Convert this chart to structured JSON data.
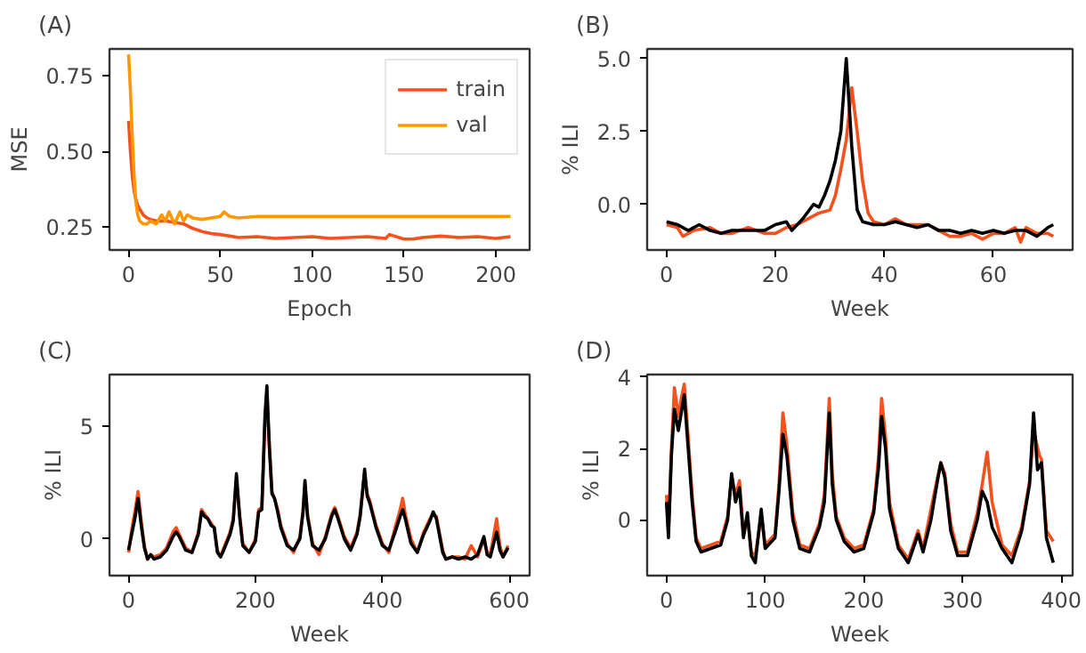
{
  "chart_data": [
    {
      "type": "line",
      "title": "(A)",
      "xlabel": "Epoch",
      "ylabel": "MSE",
      "xlim": [
        -10.4,
        218.4
      ],
      "ylim": [
        0.174,
        0.838
      ],
      "xticks": [
        0,
        50,
        100,
        150,
        200
      ],
      "yticks": [
        {
          "value": 0.25,
          "label": "0.25"
        },
        {
          "value": 0.5,
          "label": "0.50"
        },
        {
          "value": 0.75,
          "label": "0.75"
        }
      ],
      "legend": "top right",
      "series": [
        {
          "name": "train",
          "color": "#f4511e",
          "x": [
            0,
            1,
            2,
            3,
            4,
            5,
            6,
            8,
            10,
            12,
            15,
            20,
            25,
            30,
            35,
            40,
            45,
            50,
            55,
            60,
            70,
            80,
            90,
            100,
            110,
            120,
            130,
            140,
            142,
            150,
            155,
            160,
            170,
            180,
            190,
            200,
            208
          ],
          "values": [
            0.6,
            0.5,
            0.42,
            0.37,
            0.34,
            0.32,
            0.31,
            0.29,
            0.28,
            0.275,
            0.27,
            0.27,
            0.265,
            0.26,
            0.245,
            0.235,
            0.228,
            0.225,
            0.22,
            0.215,
            0.218,
            0.212,
            0.215,
            0.218,
            0.212,
            0.215,
            0.218,
            0.212,
            0.225,
            0.21,
            0.21,
            0.215,
            0.22,
            0.215,
            0.218,
            0.212,
            0.218
          ]
        },
        {
          "name": "val",
          "color": "#ff9800",
          "x": [
            0,
            1,
            2,
            3,
            4,
            5,
            6,
            8,
            10,
            12,
            15,
            18,
            20,
            22,
            25,
            28,
            30,
            32,
            35,
            40,
            45,
            50,
            52,
            55,
            60,
            70,
            80,
            100,
            150,
            208
          ],
          "values": [
            0.82,
            0.7,
            0.55,
            0.42,
            0.33,
            0.29,
            0.27,
            0.26,
            0.26,
            0.27,
            0.26,
            0.29,
            0.27,
            0.3,
            0.26,
            0.3,
            0.27,
            0.29,
            0.28,
            0.275,
            0.28,
            0.285,
            0.3,
            0.285,
            0.28,
            0.285,
            0.285,
            0.285,
            0.285,
            0.285
          ]
        }
      ]
    },
    {
      "type": "line",
      "title": "(B)",
      "xlabel": "Week",
      "ylabel": "% ILI",
      "xlim": [
        -3.55,
        74.55
      ],
      "ylim": [
        -1.57,
        5.33
      ],
      "xticks": [
        0,
        20,
        40,
        60
      ],
      "yticks": [
        {
          "value": 0,
          "label": "0.0"
        },
        {
          "value": 2.5,
          "label": "2.5"
        },
        {
          "value": 5,
          "label": "5.0"
        }
      ],
      "series": [
        {
          "color": "#f4511e",
          "x": [
            0,
            2,
            3,
            5,
            8,
            10,
            12,
            15,
            18,
            20,
            22,
            24,
            26,
            28,
            30,
            31,
            32,
            33,
            34,
            35,
            36,
            37,
            38,
            40,
            42,
            44,
            46,
            48,
            50,
            52,
            54,
            56,
            58,
            60,
            62,
            64,
            65,
            66,
            68,
            70,
            71
          ],
          "values": [
            -0.7,
            -0.8,
            -1.1,
            -0.9,
            -0.8,
            -1.0,
            -1.0,
            -0.8,
            -1.0,
            -1.0,
            -0.8,
            -0.7,
            -0.5,
            -0.3,
            -0.2,
            0.3,
            1.2,
            2.2,
            4.0,
            2.5,
            0.8,
            -0.3,
            -0.6,
            -0.7,
            -0.5,
            -0.7,
            -0.7,
            -0.7,
            -0.9,
            -1.1,
            -1.1,
            -1.0,
            -1.2,
            -1.0,
            -1.0,
            -0.8,
            -1.3,
            -0.8,
            -1.0,
            -1.0,
            -1.1
          ]
        },
        {
          "color": "#000000",
          "x": [
            0,
            2,
            4,
            6,
            8,
            10,
            12,
            14,
            16,
            18,
            20,
            22,
            23,
            25,
            27,
            28,
            29,
            30,
            31,
            32,
            33,
            34,
            35,
            36,
            38,
            40,
            42,
            44,
            46,
            48,
            50,
            52,
            54,
            56,
            58,
            60,
            62,
            64,
            66,
            68,
            70,
            71
          ],
          "values": [
            -0.6,
            -0.7,
            -0.9,
            -0.7,
            -0.9,
            -1.0,
            -0.9,
            -0.9,
            -0.9,
            -0.9,
            -0.7,
            -0.6,
            -0.9,
            -0.5,
            0.0,
            -0.1,
            0.3,
            0.8,
            1.5,
            2.5,
            5.0,
            2.0,
            -0.2,
            -0.6,
            -0.7,
            -0.7,
            -0.6,
            -0.7,
            -0.8,
            -0.7,
            -0.9,
            -0.9,
            -1.0,
            -0.9,
            -1.0,
            -0.9,
            -1.0,
            -0.9,
            -0.9,
            -1.1,
            -0.8,
            -0.7
          ]
        }
      ]
    },
    {
      "type": "line",
      "title": "(C)",
      "xlabel": "Week",
      "ylabel": "% ILI",
      "xlim": [
        -30,
        632
      ],
      "ylim": [
        -1.63,
        7.3
      ],
      "xticks": [
        0,
        200,
        400,
        600
      ],
      "yticks": [
        0,
        5
      ],
      "series": [
        {
          "color": "#f4511e",
          "x": [
            0,
            5,
            10,
            15,
            20,
            25,
            30,
            35,
            40,
            50,
            60,
            70,
            75,
            80,
            90,
            100,
            110,
            115,
            120,
            125,
            130,
            135,
            140,
            145,
            150,
            160,
            165,
            170,
            175,
            180,
            190,
            200,
            205,
            210,
            215,
            218,
            222,
            226,
            230,
            235,
            240,
            250,
            260,
            270,
            275,
            278,
            282,
            290,
            300,
            310,
            320,
            325,
            330,
            340,
            350,
            360,
            365,
            372,
            376,
            380,
            390,
            400,
            410,
            420,
            428,
            432,
            436,
            445,
            455,
            465,
            475,
            480,
            485,
            495,
            500,
            510,
            520,
            530,
            540,
            550,
            560,
            565,
            570,
            580,
            585,
            590,
            598
          ],
          "values": [
            -0.6,
            0.4,
            1.2,
            2.1,
            0.8,
            -0.3,
            -0.9,
            -0.7,
            -0.8,
            -0.7,
            -0.4,
            0.3,
            0.5,
            0.2,
            -0.4,
            -0.6,
            0.3,
            1.3,
            1.1,
            0.9,
            0.7,
            0.5,
            -0.5,
            -0.8,
            -0.4,
            0.3,
            0.9,
            2.6,
            1.1,
            -0.2,
            -0.6,
            0.0,
            1.3,
            1.4,
            5.2,
            6.3,
            4.1,
            2.1,
            1.8,
            1.3,
            0.6,
            -0.2,
            -0.6,
            0.1,
            1.3,
            2.4,
            1.1,
            -0.2,
            -0.7,
            0.1,
            1.1,
            1.4,
            1.0,
            0.1,
            -0.4,
            0.3,
            1.1,
            2.9,
            2.0,
            1.7,
            0.6,
            -0.2,
            -0.6,
            0.5,
            1.3,
            1.8,
            1.1,
            0.0,
            -0.6,
            0.3,
            0.9,
            1.1,
            1.0,
            -0.5,
            -0.9,
            -0.8,
            -0.8,
            -0.9,
            -0.3,
            -0.8,
            0.0,
            -0.6,
            -0.7,
            0.9,
            -0.3,
            -0.8,
            -0.3
          ]
        },
        {
          "color": "#000000",
          "x": [
            0,
            5,
            10,
            15,
            20,
            25,
            30,
            35,
            40,
            50,
            60,
            70,
            75,
            80,
            90,
            100,
            110,
            115,
            120,
            125,
            130,
            135,
            140,
            145,
            150,
            160,
            165,
            170,
            175,
            180,
            190,
            200,
            205,
            210,
            215,
            218,
            222,
            226,
            230,
            235,
            240,
            250,
            260,
            270,
            275,
            278,
            282,
            290,
            300,
            310,
            320,
            325,
            330,
            340,
            350,
            360,
            365,
            372,
            376,
            380,
            390,
            400,
            410,
            420,
            428,
            432,
            436,
            445,
            455,
            465,
            475,
            480,
            485,
            495,
            500,
            510,
            520,
            530,
            540,
            550,
            560,
            565,
            570,
            580,
            585,
            590,
            598
          ],
          "values": [
            -0.5,
            0.2,
            0.9,
            1.8,
            0.6,
            -0.4,
            -0.9,
            -0.7,
            -0.9,
            -0.8,
            -0.5,
            0.1,
            0.3,
            0.1,
            -0.5,
            -0.6,
            0.2,
            1.2,
            1.0,
            0.9,
            0.6,
            0.5,
            -0.6,
            -0.8,
            -0.5,
            0.2,
            0.8,
            2.9,
            1.0,
            -0.3,
            -0.6,
            -0.1,
            1.2,
            1.3,
            5.5,
            6.8,
            4.0,
            2.0,
            1.8,
            1.2,
            0.5,
            -0.3,
            -0.5,
            0.0,
            1.2,
            2.6,
            1.0,
            -0.3,
            -0.5,
            0.0,
            1.0,
            1.3,
            0.9,
            0.0,
            -0.5,
            0.2,
            1.0,
            3.1,
            1.9,
            1.6,
            0.5,
            -0.3,
            -0.5,
            0.3,
            1.0,
            1.3,
            0.9,
            -0.2,
            -0.6,
            0.2,
            0.8,
            1.2,
            0.9,
            -0.6,
            -0.9,
            -0.8,
            -0.9,
            -0.8,
            -0.9,
            -0.7,
            0.1,
            -0.7,
            -0.8,
            0.3,
            -0.5,
            -0.8,
            -0.4
          ]
        }
      ]
    },
    {
      "type": "line",
      "title": "(D)",
      "xlabel": "Week",
      "ylabel": "% ILI",
      "xlim": [
        -19.6,
        411.6
      ],
      "ylim": [
        -1.56,
        4.07
      ],
      "xticks": [
        0,
        100,
        200,
        300,
        400
      ],
      "yticks": [
        0,
        2,
        4
      ],
      "series": [
        {
          "color": "#f4511e",
          "x": [
            0,
            2,
            5,
            8,
            12,
            15,
            18,
            22,
            26,
            30,
            35,
            45,
            55,
            62,
            66,
            70,
            74,
            78,
            82,
            86,
            90,
            96,
            100,
            110,
            114,
            118,
            122,
            128,
            135,
            145,
            155,
            160,
            165,
            168,
            172,
            180,
            190,
            200,
            210,
            215,
            218,
            222,
            226,
            235,
            245,
            255,
            260,
            268,
            274,
            278,
            282,
            288,
            295,
            305,
            315,
            320,
            325,
            330,
            340,
            350,
            360,
            368,
            372,
            378,
            380,
            385,
            392
          ],
          "values": [
            0.7,
            -0.3,
            2.0,
            3.7,
            2.9,
            3.4,
            3.8,
            2.3,
            0.7,
            -0.5,
            -0.8,
            -0.7,
            -0.6,
            0.1,
            1.2,
            0.7,
            1.1,
            -0.4,
            0.1,
            -0.9,
            -1.0,
            0.1,
            -0.7,
            -0.4,
            1.0,
            3.0,
            2.1,
            0.2,
            -0.7,
            -0.8,
            -0.1,
            0.7,
            3.4,
            1.3,
            0.1,
            -0.5,
            -0.8,
            -0.7,
            0.3,
            1.8,
            3.4,
            2.3,
            0.5,
            -0.7,
            -1.1,
            -0.3,
            -0.8,
            0.3,
            1.1,
            1.6,
            1.3,
            -0.1,
            -0.9,
            -0.9,
            0.2,
            1.0,
            1.9,
            0.5,
            -0.7,
            -1.0,
            -0.2,
            1.1,
            2.5,
            1.8,
            1.7,
            -0.3,
            -0.6
          ]
        },
        {
          "color": "#000000",
          "x": [
            0,
            2,
            5,
            8,
            12,
            15,
            18,
            22,
            26,
            30,
            35,
            45,
            55,
            62,
            66,
            70,
            74,
            78,
            82,
            86,
            90,
            96,
            100,
            110,
            114,
            118,
            122,
            128,
            135,
            145,
            155,
            160,
            165,
            168,
            172,
            180,
            190,
            200,
            210,
            215,
            218,
            222,
            226,
            235,
            245,
            255,
            260,
            268,
            274,
            278,
            282,
            288,
            295,
            305,
            315,
            320,
            325,
            330,
            340,
            350,
            360,
            368,
            372,
            376,
            380,
            385,
            392
          ],
          "values": [
            0.5,
            -0.5,
            1.8,
            3.1,
            2.5,
            3.0,
            3.5,
            2.0,
            0.5,
            -0.6,
            -0.9,
            -0.8,
            -0.7,
            0.0,
            1.3,
            0.5,
            0.9,
            -0.5,
            0.2,
            -1.0,
            -1.2,
            0.3,
            -0.8,
            -0.5,
            0.8,
            2.4,
            1.8,
            0.0,
            -0.8,
            -0.9,
            -0.2,
            0.5,
            3.0,
            1.0,
            0.0,
            -0.6,
            -0.9,
            -0.8,
            0.2,
            1.5,
            2.9,
            2.0,
            0.3,
            -0.8,
            -1.2,
            -0.4,
            -0.9,
            0.0,
            1.0,
            1.6,
            1.2,
            -0.3,
            -1.0,
            -1.0,
            0.0,
            0.8,
            0.5,
            -0.2,
            -0.8,
            -1.2,
            -0.3,
            1.0,
            3.0,
            1.4,
            1.6,
            -0.5,
            -1.2
          ]
        }
      ]
    }
  ]
}
